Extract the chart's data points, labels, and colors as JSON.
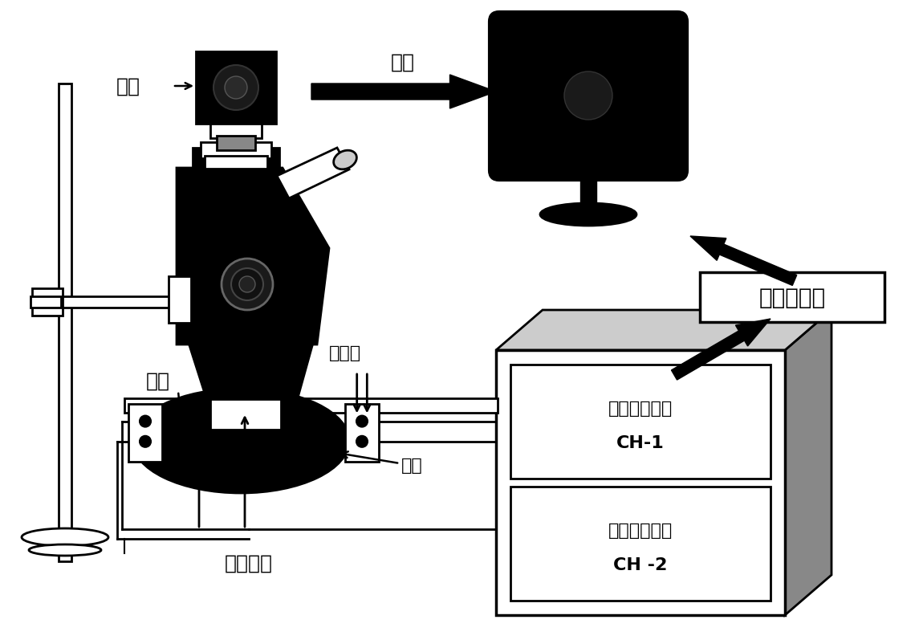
{
  "bg_color": "#ffffff",
  "text_camera": "相机",
  "text_record": "录像",
  "text_furnace": "炉膛",
  "text_thermocouple": "热电偶",
  "text_sample": "样品",
  "text_control_wire": "控制电线",
  "text_signal_converter": "信号转换器",
  "text_ch1_line1": "热电偶控制柜",
  "text_ch1_line2": "CH-1",
  "text_ch2_line1": "热电偶控制柜",
  "text_ch2_line2": "CH -2",
  "black": "#000000",
  "white": "#ffffff",
  "dark_gray": "#555555",
  "mid_gray": "#888888",
  "light_gray": "#cccccc"
}
